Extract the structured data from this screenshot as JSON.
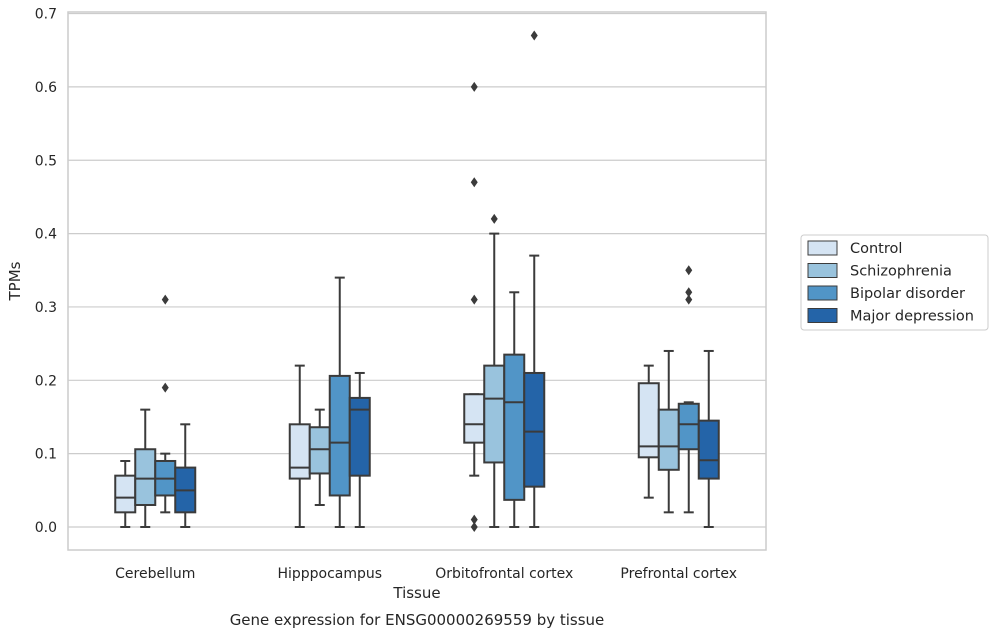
{
  "chart_data": {
    "type": "box",
    "xlabel": "Tissue",
    "ylabel": "TPMs",
    "caption": "Gene expression for ENSG00000269559 by tissue",
    "ylim": [
      -0.032,
      0.705
    ],
    "yticks": [
      "0.0",
      "0.1",
      "0.2",
      "0.3",
      "0.4",
      "0.5",
      "0.6",
      "0.7"
    ],
    "grid": true,
    "legend_position": "right",
    "categories": [
      "Cerebellum",
      "Hipppocampus",
      "Orbitofrontal cortex",
      "Prefrontal cortex"
    ],
    "series": [
      {
        "name": "Control",
        "color": "#d5e4f3",
        "boxes": [
          {
            "whisker_low": 0.0,
            "q1": 0.02,
            "median": 0.04,
            "q3": 0.07,
            "whisker_high": 0.09,
            "outliers": []
          },
          {
            "whisker_low": 0.0,
            "q1": 0.066,
            "median": 0.081,
            "q3": 0.14,
            "whisker_high": 0.22,
            "outliers": []
          },
          {
            "whisker_low": 0.07,
            "q1": 0.115,
            "median": 0.14,
            "q3": 0.181,
            "whisker_high": 0.181,
            "outliers": [
              0.0,
              0.01,
              0.31,
              0.47,
              0.6
            ]
          },
          {
            "whisker_low": 0.04,
            "q1": 0.095,
            "median": 0.11,
            "q3": 0.196,
            "whisker_high": 0.22,
            "outliers": []
          }
        ]
      },
      {
        "name": "Schizophrenia",
        "color": "#99c3dd",
        "boxes": [
          {
            "whisker_low": 0.0,
            "q1": 0.03,
            "median": 0.066,
            "q3": 0.106,
            "whisker_high": 0.16,
            "outliers": []
          },
          {
            "whisker_low": 0.03,
            "q1": 0.073,
            "median": 0.106,
            "q3": 0.136,
            "whisker_high": 0.16,
            "outliers": []
          },
          {
            "whisker_low": 0.0,
            "q1": 0.088,
            "median": 0.175,
            "q3": 0.22,
            "whisker_high": 0.4,
            "outliers": [
              0.42
            ]
          },
          {
            "whisker_low": 0.02,
            "q1": 0.078,
            "median": 0.11,
            "q3": 0.16,
            "whisker_high": 0.24,
            "outliers": []
          }
        ]
      },
      {
        "name": "Bipolar disorder",
        "color": "#5195c7",
        "boxes": [
          {
            "whisker_low": 0.02,
            "q1": 0.043,
            "median": 0.066,
            "q3": 0.09,
            "whisker_high": 0.1,
            "outliers": [
              0.19,
              0.31
            ]
          },
          {
            "whisker_low": 0.0,
            "q1": 0.043,
            "median": 0.115,
            "q3": 0.206,
            "whisker_high": 0.34,
            "outliers": []
          },
          {
            "whisker_low": 0.0,
            "q1": 0.037,
            "median": 0.17,
            "q3": 0.235,
            "whisker_high": 0.32,
            "outliers": []
          },
          {
            "whisker_low": 0.02,
            "q1": 0.106,
            "median": 0.14,
            "q3": 0.168,
            "whisker_high": 0.17,
            "outliers": [
              0.31,
              0.32,
              0.35
            ]
          }
        ]
      },
      {
        "name": "Major depression",
        "color": "#2464a8",
        "boxes": [
          {
            "whisker_low": 0.0,
            "q1": 0.02,
            "median": 0.05,
            "q3": 0.081,
            "whisker_high": 0.14,
            "outliers": []
          },
          {
            "whisker_low": 0.0,
            "q1": 0.07,
            "median": 0.16,
            "q3": 0.176,
            "whisker_high": 0.21,
            "outliers": []
          },
          {
            "whisker_low": 0.0,
            "q1": 0.055,
            "median": 0.13,
            "q3": 0.21,
            "whisker_high": 0.37,
            "outliers": [
              0.67
            ]
          },
          {
            "whisker_low": 0.0,
            "q1": 0.066,
            "median": 0.091,
            "q3": 0.145,
            "whisker_high": 0.24,
            "outliers": []
          }
        ]
      }
    ]
  }
}
